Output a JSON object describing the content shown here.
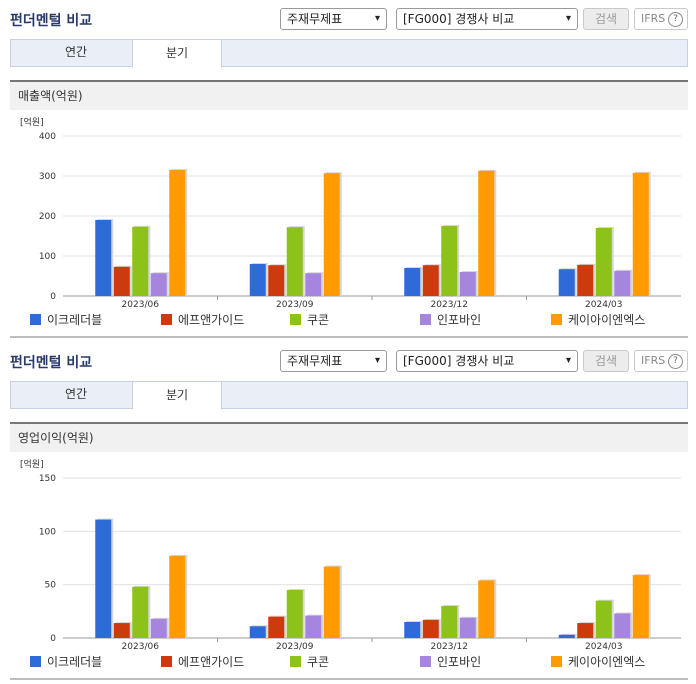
{
  "sections": [
    {
      "header": {
        "title": "펀더멘털 비교",
        "report_select": "주재무제표",
        "compare_select": "[FG000] 경쟁사 비교",
        "search_label": "검색",
        "ifrs_label": "IFRS",
        "help_glyph": "?"
      },
      "tabs": [
        {
          "label": "연간"
        },
        {
          "label": "분기"
        }
      ],
      "active_tab": "분기",
      "panel_title": "매출액(억원)",
      "chart_data": {
        "type": "bar",
        "unit_label": "[억원]",
        "categories": [
          "2023/06",
          "2023/09",
          "2023/12",
          "2024/03"
        ],
        "ylim": [
          0,
          400
        ],
        "yticks": [
          0,
          100,
          200,
          300,
          400
        ],
        "grid": true,
        "legend_position": "bottom",
        "series": [
          {
            "name": "이크레더블",
            "color": "#2f6bd8",
            "values": [
              190,
              80,
              70,
              67
            ]
          },
          {
            "name": "에프앤가이드",
            "color": "#cc3a0e",
            "values": [
              73,
              77,
              77,
              78
            ]
          },
          {
            "name": "쿠콘",
            "color": "#8cc21a",
            "values": [
              173,
              172,
              175,
              170
            ]
          },
          {
            "name": "인포바인",
            "color": "#a585de",
            "values": [
              57,
              57,
              60,
              63
            ]
          },
          {
            "name": "케이아이엔엑스",
            "color": "#ff9a00",
            "values": [
              315,
              307,
              313,
              308
            ]
          }
        ]
      }
    },
    {
      "header": {
        "title": "펀더멘털 비교",
        "report_select": "주재무제표",
        "compare_select": "[FG000] 경쟁사 비교",
        "search_label": "검색",
        "ifrs_label": "IFRS",
        "help_glyph": "?"
      },
      "tabs": [
        {
          "label": "연간"
        },
        {
          "label": "분기"
        }
      ],
      "active_tab": "분기",
      "panel_title": "영업이익(억원)",
      "chart_data": {
        "type": "bar",
        "unit_label": "[억원]",
        "categories": [
          "2023/06",
          "2023/09",
          "2023/12",
          "2024/03"
        ],
        "ylim": [
          0,
          150
        ],
        "yticks": [
          0,
          50,
          100,
          150
        ],
        "grid": true,
        "legend_position": "bottom",
        "series": [
          {
            "name": "이크레더블",
            "color": "#2f6bd8",
            "values": [
              111,
              11,
              15,
              3
            ]
          },
          {
            "name": "에프앤가이드",
            "color": "#cc3a0e",
            "values": [
              14,
              20,
              17,
              14
            ]
          },
          {
            "name": "쿠콘",
            "color": "#8cc21a",
            "values": [
              48,
              45,
              30,
              35
            ]
          },
          {
            "name": "인포바인",
            "color": "#a585de",
            "values": [
              18,
              21,
              19,
              23
            ]
          },
          {
            "name": "케이아이엔엑스",
            "color": "#ff9a00",
            "values": [
              77,
              67,
              54,
              59
            ]
          }
        ]
      }
    }
  ]
}
